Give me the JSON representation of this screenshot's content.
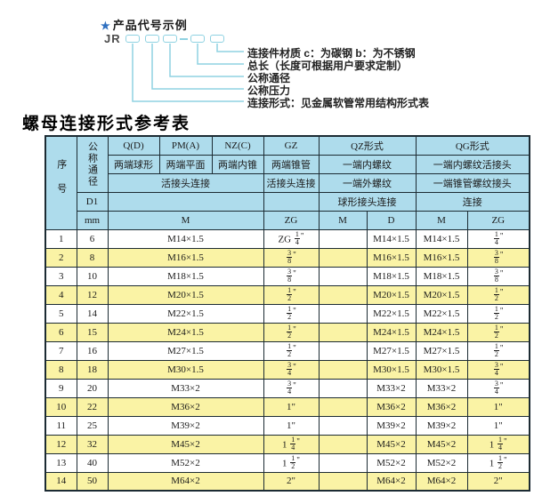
{
  "diagram": {
    "star_label": "产品代号示例",
    "code_prefix": "JR",
    "labels": [
      "连接件材质  c：为碳钢  b：为不锈钢",
      "总长（长度可根据用户要求定制）",
      "公称通径",
      "公称压力",
      "连接形式：见金属软管常用结构形式表"
    ]
  },
  "table": {
    "title": "螺母连接形式参考表",
    "header": {
      "seq": "序号",
      "dn": "公称通径",
      "d1": "D1",
      "mm": "mm",
      "col_q": "Q(D)",
      "col_pm": "PM(A)",
      "col_nz": "NZ(C)",
      "col_gz": "GZ",
      "col_qz": "QZ形式",
      "col_qg": "QG形式",
      "q_desc": "两端球形",
      "pm_desc": "两端平面",
      "nz_desc": "两端内锥",
      "gz_desc": "两端锥管",
      "qz_desc1": "一端内螺纹",
      "qg_desc1": "一端内螺纹活接头",
      "union_conn": "活接头连接",
      "gz_conn": "活接头连接",
      "qz_desc2": "一端外螺纹",
      "qg_desc2": "一端锥管螺纹接头",
      "qz_conn": "球形接头连接",
      "qg_conn": "连接",
      "m1": "M",
      "zg1": "ZG",
      "m2": "M",
      "d": "D",
      "m3": "M",
      "zg2": "ZG"
    },
    "rows": [
      {
        "cells": [
          "1",
          "6",
          "M14×1.5",
          "ZG 1/4\"",
          "",
          "M14×1.5",
          "M14×1.5",
          "1/4\""
        ]
      },
      {
        "cells": [
          "2",
          "8",
          "M16×1.5",
          "3/8\"",
          "",
          "M16×1.5",
          "M16×1.5",
          "3/8\""
        ]
      },
      {
        "cells": [
          "3",
          "10",
          "M18×1.5",
          "3/8\"",
          "",
          "M18×1.5",
          "M18×1.5",
          "3/8\""
        ]
      },
      {
        "cells": [
          "4",
          "12",
          "M20×1.5",
          "1/2\"",
          "",
          "M20×1.5",
          "M20×1.5",
          "1/2\""
        ]
      },
      {
        "cells": [
          "5",
          "14",
          "M22×1.5",
          "1/2\"",
          "",
          "M22×1.5",
          "M22×1.5",
          "1/2\""
        ]
      },
      {
        "cells": [
          "6",
          "15",
          "M24×1.5",
          "1/2\"",
          "",
          "M24×1.5",
          "M24×1.5",
          "1/2\""
        ]
      },
      {
        "cells": [
          "7",
          "16",
          "M27×1.5",
          "1/2\"",
          "",
          "M27×1.5",
          "M27×1.5",
          "1/2\""
        ]
      },
      {
        "cells": [
          "8",
          "18",
          "M30×1.5",
          "3/4\"",
          "",
          "M30×1.5",
          "M30×1.5",
          "3/4\""
        ]
      },
      {
        "cells": [
          "9",
          "20",
          "M33×2",
          "3/4\"",
          "",
          "M33×2",
          "M33×2",
          "3/4\""
        ]
      },
      {
        "cells": [
          "10",
          "22",
          "M36×2",
          "1\"",
          "",
          "M36×2",
          "M36×2",
          "1\""
        ]
      },
      {
        "cells": [
          "11",
          "25",
          "M39×2",
          "1\"",
          "",
          "M39×2",
          "M39×2",
          "1\""
        ]
      },
      {
        "cells": [
          "12",
          "32",
          "M45×2",
          "1 1/4\"",
          "",
          "M45×2",
          "M45×2",
          "1 1/4\""
        ]
      },
      {
        "cells": [
          "13",
          "40",
          "M52×2",
          "1 1/2\"",
          "",
          "M52×2",
          "M52×2",
          "1 1/2\""
        ]
      },
      {
        "cells": [
          "14",
          "50",
          "M64×2",
          "2\"",
          "",
          "M64×2",
          "M64×2",
          "2\""
        ]
      }
    ]
  },
  "colors": {
    "header_blue": "#aedcec",
    "row_yellow": "#faf3a5",
    "row_white": "#ffffff",
    "border": "#1c2b33",
    "line_cyan": "#8fd2e2",
    "star_blue": "#2e6fc0"
  }
}
